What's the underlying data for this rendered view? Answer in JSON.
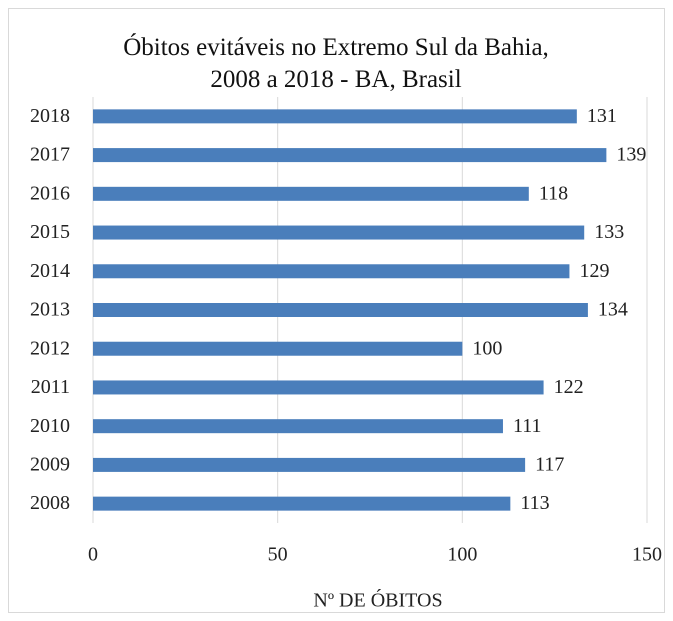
{
  "chart_data": {
    "type": "bar",
    "orientation": "horizontal",
    "title": "Óbitos evitáveis no Extremo Sul da Bahia, 2008 a 2018 - BA, Brasil",
    "x_label": "Nº DE ÓBITOS",
    "categories": [
      "2008",
      "2009",
      "2010",
      "2011",
      "2012",
      "2013",
      "2014",
      "2015",
      "2016",
      "2017",
      "2018"
    ],
    "values": [
      113,
      117,
      111,
      122,
      100,
      134,
      129,
      133,
      118,
      139,
      131
    ],
    "color": "#4a7ebb",
    "xlim": [
      0,
      150
    ],
    "xticks": [
      0,
      50,
      100,
      150
    ],
    "grid": true
  }
}
